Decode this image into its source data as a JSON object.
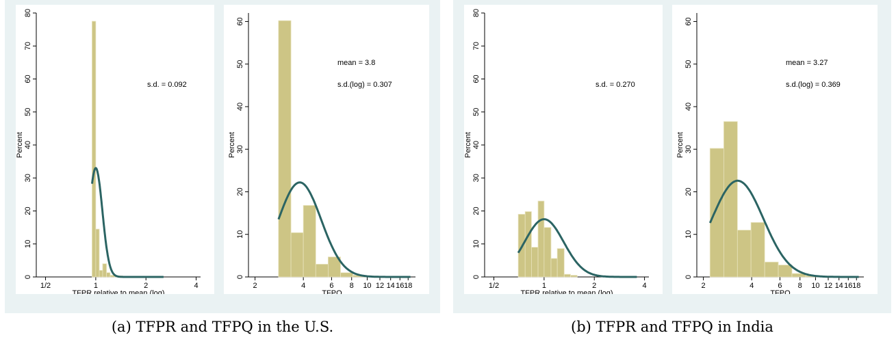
{
  "captions": {
    "a": "(a) TFPR and TFPQ in the U.S.",
    "b": "(b) TFPR and TFPQ in India"
  },
  "colors": {
    "bar_fill": "#cdc585",
    "bar_stroke": "#e8e3bd",
    "curve": "#2b6463",
    "panel_bg": "#eaf2f3"
  },
  "chart_data": [
    {
      "id": "us-tfpr",
      "type": "bar",
      "xscale": "log",
      "xlabel": "TFPR relative to mean (log)",
      "ylabel": "Percent",
      "xlim": [
        0.44,
        4.25
      ],
      "ylim": [
        0,
        80
      ],
      "xticks": [
        0.5,
        1,
        2,
        4
      ],
      "xtick_labels": [
        "1/2",
        "1",
        "2",
        "4"
      ],
      "yticks": [
        0,
        10,
        20,
        30,
        40,
        50,
        60,
        70,
        80
      ],
      "annotations": [
        "s.d. = 0.092"
      ],
      "bins": [
        {
          "x0": 0.95,
          "x1": 1.0,
          "y": 77.5
        },
        {
          "x0": 1.0,
          "x1": 1.05,
          "y": 14.5
        },
        {
          "x0": 1.05,
          "x1": 1.1,
          "y": 2.0
        },
        {
          "x0": 1.1,
          "x1": 1.16,
          "y": 4.0
        },
        {
          "x0": 1.16,
          "x1": 1.22,
          "y": 1.3
        },
        {
          "x0": 1.22,
          "x1": 1.3,
          "y": 0.5
        },
        {
          "x0": 1.3,
          "x1": 1.45,
          "y": 0.3
        },
        {
          "x0": 1.45,
          "x1": 1.6,
          "y": 0.2
        }
      ],
      "curve": {
        "x_from": 0.95,
        "x_to": 2.55,
        "mean": 1.0,
        "sigma": 0.092,
        "peak": 33
      }
    },
    {
      "id": "us-tfpq",
      "type": "bar",
      "xscale": "log",
      "xlabel": "TFPQ",
      "ylabel": "Percent",
      "xlim": [
        1.82,
        20
      ],
      "ylim": [
        0,
        62
      ],
      "xticks": [
        2,
        4,
        6,
        8,
        10,
        12,
        14,
        16,
        18
      ],
      "xtick_labels": [
        "2",
        "4",
        "6",
        "8",
        "10",
        "12",
        "14",
        "16",
        "18"
      ],
      "yticks": [
        0,
        10,
        20,
        30,
        40,
        50,
        60
      ],
      "annotations": [
        "mean = 3.8",
        "s.d.(log) = 0.307"
      ],
      "bins": [
        {
          "x0": 2.8,
          "x1": 3.35,
          "y": 60.2
        },
        {
          "x0": 3.35,
          "x1": 4.0,
          "y": 10.4
        },
        {
          "x0": 4.0,
          "x1": 4.78,
          "y": 16.8
        },
        {
          "x0": 4.78,
          "x1": 5.71,
          "y": 3.0
        },
        {
          "x0": 5.71,
          "x1": 6.82,
          "y": 4.7
        },
        {
          "x0": 6.82,
          "x1": 8.15,
          "y": 1.0
        },
        {
          "x0": 8.15,
          "x1": 9.74,
          "y": 0.4
        },
        {
          "x0": 9.74,
          "x1": 11.6,
          "y": 0.2
        },
        {
          "x0": 11.6,
          "x1": 13.9,
          "y": 0.1
        }
      ],
      "curve": {
        "x_from": 2.8,
        "x_to": 18.6,
        "mean": 3.8,
        "sigma": 0.307,
        "peak": 22.2
      }
    },
    {
      "id": "india-tfpr",
      "type": "bar",
      "xscale": "log",
      "xlabel": "TFPR relative to mean (log)",
      "ylabel": "Percent",
      "xlim": [
        0.44,
        4.25
      ],
      "ylim": [
        0,
        80
      ],
      "xticks": [
        0.5,
        1,
        2,
        4
      ],
      "xtick_labels": [
        "1/2",
        "1",
        "2",
        "4"
      ],
      "yticks": [
        0,
        10,
        20,
        30,
        40,
        50,
        60,
        70,
        80
      ],
      "annotations": [
        "s.d. = 0.270"
      ],
      "bins": [
        {
          "x0": 0.7,
          "x1": 0.77,
          "y": 19.0
        },
        {
          "x0": 0.77,
          "x1": 0.84,
          "y": 19.8
        },
        {
          "x0": 0.84,
          "x1": 0.92,
          "y": 9.0
        },
        {
          "x0": 0.92,
          "x1": 1.0,
          "y": 23.0
        },
        {
          "x0": 1.0,
          "x1": 1.1,
          "y": 15.0
        },
        {
          "x0": 1.1,
          "x1": 1.2,
          "y": 5.6
        },
        {
          "x0": 1.2,
          "x1": 1.32,
          "y": 8.6
        },
        {
          "x0": 1.32,
          "x1": 1.44,
          "y": 0.8
        },
        {
          "x0": 1.44,
          "x1": 1.58,
          "y": 0.5
        }
      ],
      "curve": {
        "x_from": 0.7,
        "x_to": 3.6,
        "mean": 1.0,
        "sigma": 0.27,
        "peak": 17.5
      }
    },
    {
      "id": "india-tfpq",
      "type": "bar",
      "xscale": "log",
      "xlabel": "TFPQ",
      "ylabel": "Percent",
      "xlim": [
        1.82,
        20
      ],
      "ylim": [
        0,
        62
      ],
      "xticks": [
        2,
        4,
        6,
        8,
        10,
        12,
        14,
        16,
        18
      ],
      "xtick_labels": [
        "2",
        "4",
        "6",
        "8",
        "10",
        "12",
        "14",
        "16",
        "18"
      ],
      "yticks": [
        0,
        10,
        20,
        30,
        40,
        50,
        60
      ],
      "annotations": [
        "mean = 3.27",
        "s.d.(log) = 0.369"
      ],
      "bins": [
        {
          "x0": 2.2,
          "x1": 2.68,
          "y": 30.2
        },
        {
          "x0": 2.68,
          "x1": 3.26,
          "y": 36.5
        },
        {
          "x0": 3.26,
          "x1": 3.96,
          "y": 11.0
        },
        {
          "x0": 3.96,
          "x1": 4.82,
          "y": 12.8
        },
        {
          "x0": 4.82,
          "x1": 5.86,
          "y": 3.5
        },
        {
          "x0": 5.86,
          "x1": 7.13,
          "y": 2.8
        },
        {
          "x0": 7.13,
          "x1": 8.67,
          "y": 0.8
        },
        {
          "x0": 8.67,
          "x1": 10.55,
          "y": 0.3
        }
      ],
      "curve": {
        "x_from": 2.2,
        "x_to": 18.6,
        "mean": 3.27,
        "sigma": 0.369,
        "peak": 22.6
      }
    }
  ]
}
